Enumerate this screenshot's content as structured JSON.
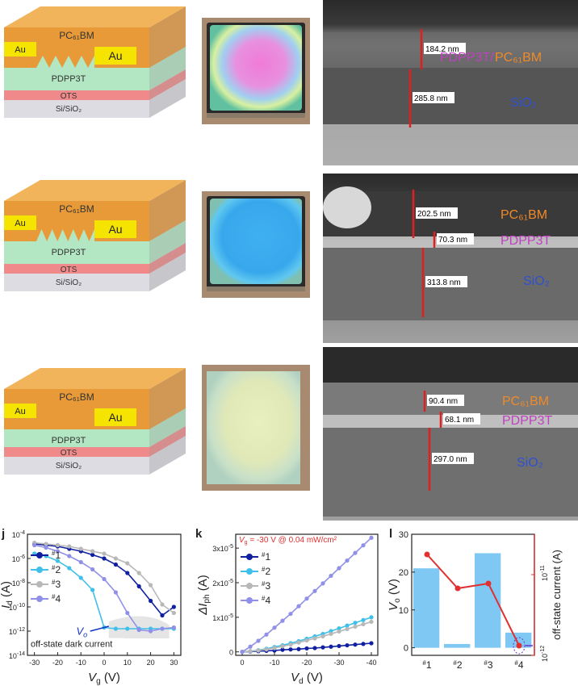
{
  "rows": [
    {
      "device": {
        "top_label": "PC₆₁BM",
        "au_left": "Au",
        "au_right": "Au",
        "mid_label": "PDPP3T",
        "ots_label": "OTS",
        "sub_label": "Si/SiO₂"
      },
      "photo": {
        "kind": "rainbow"
      },
      "sem": {
        "measurements": [
          "184.2 nm",
          "285.8 nm"
        ],
        "labels": [
          "PDPP3T/",
          "PC₆₁BM",
          "SiO₂"
        ]
      }
    },
    {
      "device": {
        "top_label": "PC₆₁BM",
        "au_left": "Au",
        "au_right": "Au",
        "mid_label": "PDPP3T",
        "ots_label": "OTS",
        "sub_label": "Si/SiO₂"
      },
      "photo": {
        "kind": "blue"
      },
      "sem": {
        "measurements": [
          "202.5 nm",
          "70.3 nm",
          "313.8 nm"
        ],
        "labels": [
          "PC₆₁BM",
          "PDPP3T",
          "SiO₂"
        ]
      }
    },
    {
      "device": {
        "top_label": "PC₆₁BM",
        "au_left": "Au",
        "au_right": "Au",
        "mid_label": "PDPP3T",
        "ots_label": "OTS",
        "sub_label": "Si/SiO₂"
      },
      "photo": {
        "kind": "pale"
      },
      "sem": {
        "measurements": [
          "90.4 nm",
          "68.1 nm",
          "297.0 nm"
        ],
        "labels": [
          "PC₆₁BM",
          "PDPP3T",
          "SiO₂"
        ]
      }
    }
  ],
  "colors": {
    "pc61bm": "#e89a38",
    "au": "#f5e400",
    "pdpp3t": "#b3e6c2",
    "ots": "#f08a8a",
    "sub": "#dcdce2",
    "sem_measure": "#e02020",
    "label_orange": "#f08a28",
    "label_purple": "#c040c0",
    "label_blue": "#3050d0",
    "s1": "#1020a0",
    "s2": "#40c0e8",
    "s3": "#b8b8b8",
    "s4": "#9090e8",
    "bar": "#7fc8f4",
    "red_line": "#e03030"
  },
  "chart_data": [
    {
      "panel": "j",
      "type": "line",
      "xlabel": "V",
      "xlabel_sub": "g",
      "xunit": "(V)",
      "ylabel": "I",
      "ylabel_sub": "d",
      "yunit": "(A)",
      "xlim": [
        -33,
        33
      ],
      "ylim_log10": [
        -14,
        -4
      ],
      "x_ticks": [
        "-30",
        "-20",
        "-10",
        "0",
        "10",
        "20",
        "30"
      ],
      "y_ticks": [
        "10-4",
        "10-6",
        "10-8",
        "10-10",
        "10-12",
        "10-14"
      ],
      "x": [
        -30,
        -25,
        -20,
        -15,
        -10,
        -5,
        0,
        5,
        10,
        15,
        20,
        25,
        30
      ],
      "series": [
        {
          "name": "#1",
          "log10_values": [
            -4.8,
            -4.9,
            -5.0,
            -5.2,
            -5.4,
            -5.7,
            -6.0,
            -6.5,
            -7.2,
            -8.3,
            -9.5,
            -10.7,
            -10.0
          ]
        },
        {
          "name": "#2",
          "log10_values": [
            -5.6,
            -5.8,
            -6.2,
            -6.8,
            -7.6,
            -8.6,
            -11.7,
            -11.8,
            -11.8,
            -11.8,
            -11.8,
            -11.8,
            -11.8
          ]
        },
        {
          "name": "#3",
          "log10_values": [
            -4.7,
            -4.8,
            -4.9,
            -5.0,
            -5.2,
            -5.4,
            -5.6,
            -6.0,
            -6.4,
            -7.2,
            -8.2,
            -9.8,
            -10.5
          ]
        },
        {
          "name": "#4",
          "log10_values": [
            -4.9,
            -5.1,
            -5.4,
            -5.8,
            -6.3,
            -6.9,
            -7.7,
            -8.8,
            -10.5,
            -11.9,
            -12.0,
            -11.8,
            -11.7
          ]
        }
      ],
      "annotations": [
        "V",
        "o",
        "off-state dark current"
      ]
    },
    {
      "panel": "k",
      "type": "line",
      "title_pre": "V",
      "title_sub": "g",
      "title_post": " = -30 V @ 0.04 mW/cm²",
      "xlabel": "V",
      "xlabel_sub": "d",
      "xunit": "(V)",
      "ylabel": "ΔI",
      "ylabel_sub": "ph",
      "yunit": "(A)",
      "xlim": [
        2,
        -42
      ],
      "ylim": [
        -0.1,
        3.4
      ],
      "x_ticks": [
        "0",
        "-10",
        "-20",
        "-30",
        "-40"
      ],
      "y_ticks": [
        "0",
        "1x10-5",
        "2x10-5",
        "3x10-5"
      ],
      "x": [
        0,
        -2.5,
        -5,
        -7.5,
        -10,
        -12.5,
        -15,
        -17.5,
        -20,
        -22.5,
        -25,
        -27.5,
        -30,
        -32.5,
        -35,
        -37.5,
        -40
      ],
      "series": [
        {
          "name": "#1",
          "values": [
            0,
            0.01,
            0.02,
            0.03,
            0.04,
            0.06,
            0.07,
            0.08,
            0.1,
            0.11,
            0.13,
            0.15,
            0.17,
            0.19,
            0.21,
            0.23,
            0.25
          ]
        },
        {
          "name": "#2",
          "values": [
            0,
            0.02,
            0.05,
            0.09,
            0.14,
            0.19,
            0.25,
            0.31,
            0.38,
            0.45,
            0.52,
            0.6,
            0.68,
            0.76,
            0.84,
            0.92,
            1.0
          ]
        },
        {
          "name": "#3",
          "values": [
            0,
            0.02,
            0.04,
            0.07,
            0.11,
            0.16,
            0.21,
            0.27,
            0.33,
            0.39,
            0.45,
            0.52,
            0.59,
            0.66,
            0.73,
            0.8,
            0.87
          ]
        },
        {
          "name": "#4",
          "values": [
            0,
            0.15,
            0.32,
            0.5,
            0.7,
            0.9,
            1.1,
            1.32,
            1.54,
            1.76,
            1.98,
            2.2,
            2.42,
            2.64,
            2.86,
            3.08,
            3.3
          ]
        }
      ]
    },
    {
      "panel": "l",
      "type": "bar",
      "categories": [
        "#1",
        "#2",
        "#3",
        "#4"
      ],
      "ylabel": "V",
      "ylabel_sub": "o",
      "yunit": "(V)",
      "ylim": [
        -2,
        30
      ],
      "y_ticks": [
        "0",
        "10",
        "20",
        "30"
      ],
      "values": [
        21,
        1,
        25,
        4
      ],
      "y2label": "off-state current (A)",
      "y2lim_log10": [
        -12,
        -10.5
      ],
      "y2_ticks": [
        "10-11",
        "10-12"
      ],
      "y2_log10_values": [
        -10.75,
        -11.17,
        -11.11,
        -11.88
      ]
    }
  ],
  "panel_letters": [
    "j",
    "k",
    "l"
  ]
}
